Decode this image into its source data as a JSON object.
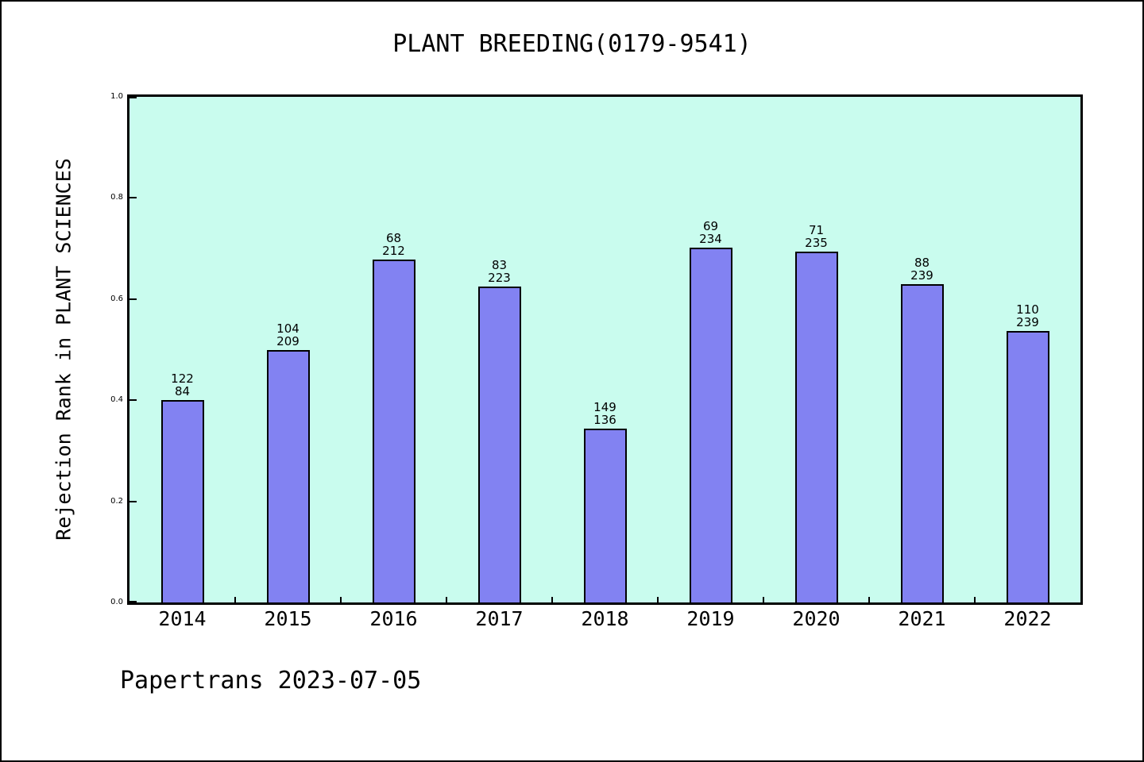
{
  "chart_data": {
    "type": "bar",
    "title": "PLANT BREEDING(0179-9541)",
    "xlabel": "",
    "ylabel": "Rejection Rank in PLANT SCIENCES",
    "ylim": [
      0.0,
      1.0
    ],
    "yticks": [
      0.0,
      0.2,
      0.4,
      0.6,
      0.8,
      1.0
    ],
    "ytick_labels": [
      "0.0",
      "0.2",
      "0.4",
      "0.6",
      "0.8",
      "1.0"
    ],
    "categories": [
      "2014",
      "2015",
      "2016",
      "2017",
      "2018",
      "2019",
      "2020",
      "2021",
      "2022"
    ],
    "values": [
      0.401,
      0.5,
      0.678,
      0.625,
      0.344,
      0.702,
      0.694,
      0.629,
      0.537
    ],
    "bar_labels": [
      [
        "122",
        "84"
      ],
      [
        "104",
        "209"
      ],
      [
        "68",
        "212"
      ],
      [
        "83",
        "223"
      ],
      [
        "149",
        "136"
      ],
      [
        "69",
        "234"
      ],
      [
        "71",
        "235"
      ],
      [
        "88",
        "239"
      ],
      [
        "110",
        "239"
      ]
    ],
    "grid": false,
    "legend_position": "none",
    "colors": {
      "bar_fill": "#8282f2",
      "bar_edge": "#000000",
      "plot_bg": "#c9fcee",
      "page_bg": "#ffffff",
      "text": "#000000"
    }
  },
  "footer": {
    "text": "Papertrans 2023-07-05"
  }
}
